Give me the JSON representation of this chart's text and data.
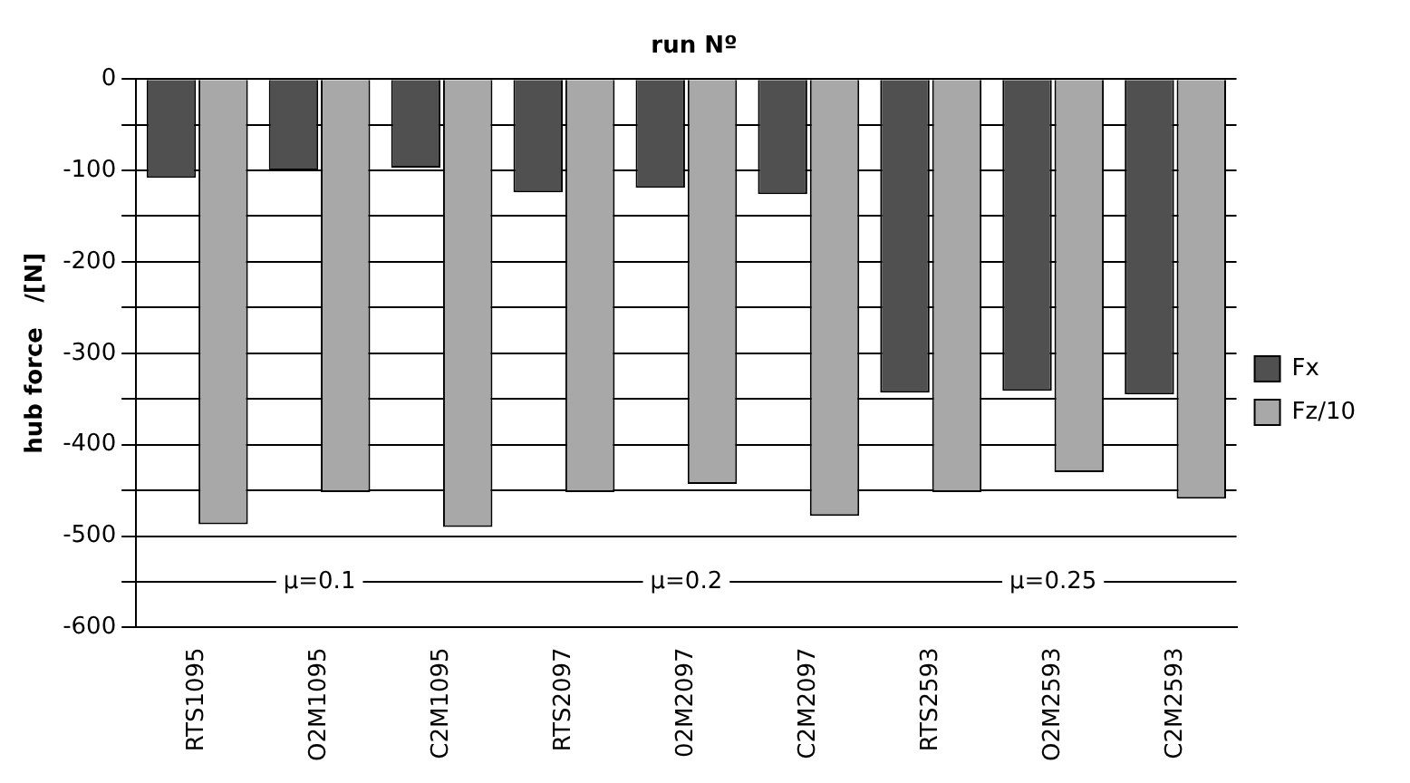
{
  "chart_data": {
    "type": "bar",
    "title": "run Nº",
    "ylabel": "hub force   /[N]",
    "categories": [
      "RTS1095",
      "O2M1095",
      "C2M1095",
      "RTS2097",
      "02M2097",
      "C2M2097",
      "RTS2593",
      "O2M2593",
      "C2M2593"
    ],
    "series": [
      {
        "name": "Fx",
        "color": "#505050",
        "values": [
          -108,
          -100,
          -97,
          -124,
          -119,
          -126,
          -343,
          -341,
          -345
        ]
      },
      {
        "name": "Fz/10",
        "color": "#a8a8a8",
        "values": [
          -487,
          -452,
          -490,
          -452,
          -443,
          -478,
          -452,
          -430,
          -459
        ]
      }
    ],
    "ylim": [
      -600,
      0
    ],
    "yticks": [
      -600,
      {
        "value": -550,
        "label": null
      },
      -500,
      {
        "value": -450,
        "label": null
      },
      -400,
      {
        "value": -350,
        "label": null
      },
      -300,
      {
        "value": -250,
        "label": null
      },
      -200,
      {
        "value": -150,
        "label": null
      },
      -100,
      {
        "value": -50,
        "label": null
      },
      0
    ],
    "grid": "y",
    "legend": "right",
    "annotations": [
      "μ=0.1",
      "μ=0.2",
      "μ=0.25"
    ]
  }
}
